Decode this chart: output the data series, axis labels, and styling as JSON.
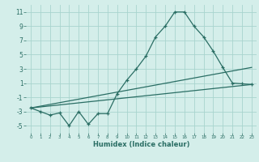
{
  "xlabel": "Humidex (Indice chaleur)",
  "bg_color": "#d4eeea",
  "grid_color": "#a8d4ce",
  "line_color": "#2a6e64",
  "xlim": [
    -0.5,
    23.5
  ],
  "ylim": [
    -6,
    12
  ],
  "yticks": [
    -5,
    -3,
    -1,
    1,
    3,
    5,
    7,
    9,
    11
  ],
  "xticks": [
    0,
    1,
    2,
    3,
    4,
    5,
    6,
    7,
    8,
    9,
    10,
    11,
    12,
    13,
    14,
    15,
    16,
    17,
    18,
    19,
    20,
    21,
    22,
    23
  ],
  "line1_x": [
    0,
    1,
    2,
    3,
    4,
    5,
    6,
    7,
    8,
    9,
    10,
    11,
    12,
    13,
    14,
    15,
    16,
    17,
    18,
    19,
    20,
    21,
    22,
    23
  ],
  "line1_y": [
    -2.5,
    -3.0,
    -3.5,
    -3.2,
    -5.0,
    -3.0,
    -4.8,
    -3.3,
    -3.3,
    -0.5,
    1.4,
    3.0,
    4.8,
    7.5,
    9.0,
    11.0,
    11.0,
    9.0,
    7.5,
    5.5,
    3.2,
    1.0,
    0.9,
    0.8
  ],
  "line2_x": [
    0,
    23
  ],
  "line2_y": [
    -2.5,
    0.8
  ],
  "line3_x": [
    0,
    23
  ],
  "line3_y": [
    -2.5,
    3.2
  ]
}
